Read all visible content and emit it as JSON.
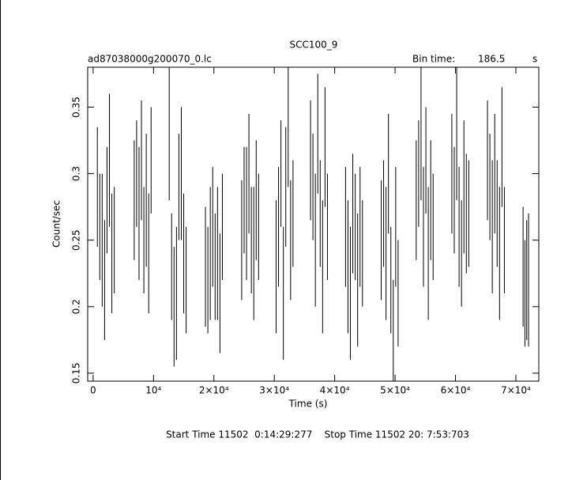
{
  "chart_data": {
    "type": "errorbar",
    "title": "SCC100_9",
    "subtitle": "ad87038000g200070_0.lc",
    "bin_time_label": "Bin time:",
    "bin_time": "186.5",
    "bin_time_unit": "s",
    "x_label": "Time (s)",
    "y_label": "Count/sec",
    "footer": "Start Time 11502  0:14:29:277    Stop Time 11502 20: 7:53:703",
    "color": "#000000",
    "xlim": [
      -900,
      73800
    ],
    "ylim": [
      0.144,
      0.38
    ],
    "xticks": [
      0,
      {
        "value": 10000,
        "label": "10⁴"
      },
      {
        "value": 20000,
        "label": "2×10⁴"
      },
      {
        "value": 30000,
        "label": "3×10⁴"
      },
      {
        "value": 40000,
        "label": "4×10⁴"
      },
      {
        "value": 50000,
        "label": "5×10⁴"
      },
      {
        "value": 60000,
        "label": "6×10⁴"
      },
      {
        "value": 70000,
        "label": "7×10⁴"
      }
    ],
    "yticks": [
      0.15,
      0.2,
      0.25,
      0.3,
      0.35
    ],
    "x": [
      700,
      1100,
      1500,
      1900,
      2300,
      2700,
      3100,
      3500,
      6800,
      7200,
      7600,
      8000,
      8400,
      8800,
      9200,
      9600,
      12600,
      13000,
      13400,
      13800,
      14200,
      14600,
      15000,
      15400,
      18600,
      19000,
      19400,
      19800,
      20200,
      20600,
      21000,
      21400,
      24600,
      25000,
      25400,
      25800,
      26200,
      26600,
      27000,
      27400,
      30300,
      30700,
      31100,
      31500,
      31900,
      32300,
      32700,
      33100,
      36000,
      36400,
      36800,
      37200,
      37600,
      38000,
      38400,
      38800,
      41800,
      42200,
      42600,
      43000,
      43400,
      43800,
      44200,
      44600,
      47700,
      48100,
      48500,
      48900,
      49300,
      49700,
      50100,
      50500,
      53500,
      53900,
      54300,
      54700,
      55100,
      55500,
      55900,
      56300,
      59400,
      59800,
      60200,
      60600,
      61000,
      61400,
      61800,
      62200,
      65300,
      65700,
      66100,
      66500,
      66900,
      67300,
      67700,
      68100,
      71200,
      71500,
      71800,
      72100
    ],
    "values": [
      0.29,
      0.26,
      0.25,
      0.22,
      0.28,
      0.31,
      0.24,
      0.25,
      0.28,
      0.3,
      0.27,
      0.31,
      0.25,
      0.28,
      0.24,
      0.31,
      0.33,
      0.23,
      0.2,
      0.21,
      0.29,
      0.3,
      0.24,
      0.22,
      0.23,
      0.22,
      0.24,
      0.26,
      0.23,
      0.24,
      0.21,
      0.26,
      0.25,
      0.28,
      0.27,
      0.3,
      0.25,
      0.24,
      0.28,
      0.26,
      0.23,
      0.26,
      0.3,
      0.21,
      0.29,
      0.34,
      0.25,
      0.27,
      0.31,
      0.29,
      0.25,
      0.33,
      0.27,
      0.23,
      0.32,
      0.26,
      0.26,
      0.23,
      0.21,
      0.27,
      0.26,
      0.22,
      0.26,
      0.24,
      0.25,
      0.27,
      0.24,
      0.3,
      0.22,
      0.18,
      0.26,
      0.21,
      0.28,
      0.3,
      0.33,
      0.26,
      0.31,
      0.24,
      0.28,
      0.26,
      0.3,
      0.28,
      0.33,
      0.26,
      0.24,
      0.29,
      0.27,
      0.27,
      0.31,
      0.29,
      0.26,
      0.3,
      0.27,
      0.24,
      0.32,
      0.25,
      0.23,
      0.21,
      0.22,
      0.22
    ],
    "errors": [
      0.045,
      0.04,
      0.05,
      0.045,
      0.04,
      0.05,
      0.045,
      0.04,
      0.045,
      0.04,
      0.05,
      0.045,
      0.04,
      0.05,
      0.045,
      0.04,
      0.05,
      0.04,
      0.045,
      0.05,
      0.04,
      0.05,
      0.045,
      0.04,
      0.045,
      0.04,
      0.05,
      0.045,
      0.04,
      0.05,
      0.045,
      0.04,
      0.045,
      0.04,
      0.05,
      0.045,
      0.04,
      0.05,
      0.045,
      0.04,
      0.05,
      0.045,
      0.04,
      0.05,
      0.045,
      0.05,
      0.045,
      0.04,
      0.045,
      0.04,
      0.05,
      0.045,
      0.04,
      0.05,
      0.045,
      0.04,
      0.045,
      0.05,
      0.05,
      0.045,
      0.04,
      0.05,
      0.045,
      0.04,
      0.045,
      0.04,
      0.05,
      0.045,
      0.04,
      0.04,
      0.045,
      0.04,
      0.045,
      0.04,
      0.05,
      0.045,
      0.04,
      0.05,
      0.045,
      0.04,
      0.045,
      0.04,
      0.05,
      0.045,
      0.04,
      0.05,
      0.045,
      0.04,
      0.045,
      0.04,
      0.05,
      0.045,
      0.04,
      0.05,
      0.045,
      0.04,
      0.045,
      0.04,
      0.045,
      0.05
    ]
  }
}
